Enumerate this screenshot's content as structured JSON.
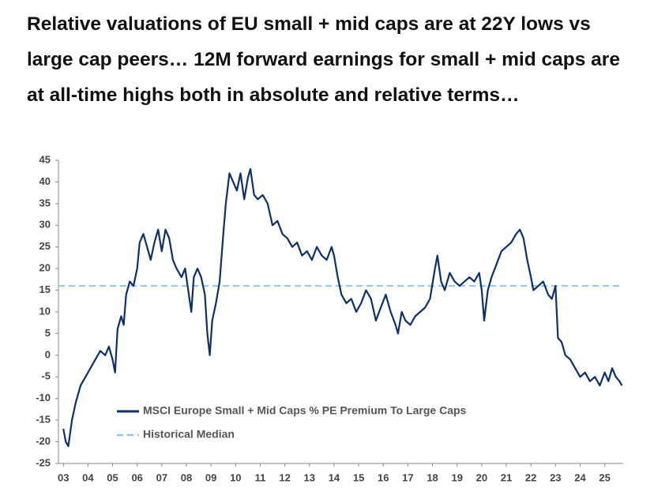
{
  "chart_data": {
    "type": "line",
    "title": "Relative valuations of EU small + mid caps are at 22Y lows vs large cap peers… 12M forward earnings for small + mid caps are at all-time highs both in absolute and relative terms…",
    "x": [
      3.0,
      3.1,
      3.2,
      3.35,
      3.5,
      3.7,
      3.9,
      4.1,
      4.3,
      4.5,
      4.7,
      4.85,
      5.0,
      5.1,
      5.2,
      5.35,
      5.45,
      5.55,
      5.7,
      5.85,
      6.0,
      6.1,
      6.25,
      6.4,
      6.55,
      6.7,
      6.85,
      7.0,
      7.15,
      7.3,
      7.45,
      7.6,
      7.8,
      7.95,
      8.1,
      8.2,
      8.3,
      8.45,
      8.6,
      8.75,
      8.85,
      8.95,
      9.05,
      9.2,
      9.35,
      9.5,
      9.6,
      9.75,
      9.9,
      10.05,
      10.2,
      10.35,
      10.5,
      10.6,
      10.75,
      10.9,
      11.1,
      11.3,
      11.5,
      11.7,
      11.9,
      12.1,
      12.3,
      12.5,
      12.7,
      12.9,
      13.1,
      13.3,
      13.5,
      13.7,
      13.9,
      14.0,
      14.15,
      14.3,
      14.5,
      14.7,
      14.9,
      15.1,
      15.3,
      15.5,
      15.7,
      15.9,
      16.1,
      16.3,
      16.5,
      16.6,
      16.75,
      16.9,
      17.1,
      17.3,
      17.5,
      17.7,
      17.9,
      18.1,
      18.2,
      18.35,
      18.5,
      18.7,
      18.9,
      19.1,
      19.3,
      19.5,
      19.7,
      19.9,
      20.0,
      20.1,
      20.25,
      20.4,
      20.6,
      20.8,
      21.0,
      21.2,
      21.4,
      21.55,
      21.7,
      21.85,
      22.0,
      22.1,
      22.3,
      22.5,
      22.7,
      22.85,
      23.0,
      23.1,
      23.25,
      23.4,
      23.6,
      23.8,
      24.0,
      24.2,
      24.4,
      24.6,
      24.8,
      25.0,
      25.15,
      25.3,
      25.45,
      25.6,
      25.7
    ],
    "series": [
      {
        "name": "MSCI Europe Small + Mid Caps % PE Premium To Large Caps",
        "color": "#0d2f6b",
        "values": [
          -17,
          -20,
          -21,
          -15,
          -11,
          -7,
          -5,
          -3,
          -1,
          1,
          0,
          2,
          -1,
          -4,
          6,
          9,
          7,
          14,
          17,
          16,
          20,
          26,
          28,
          25,
          22,
          26,
          29,
          24,
          29,
          27,
          22,
          20,
          18,
          20,
          14,
          10,
          18,
          20,
          18,
          14,
          5,
          0,
          8,
          12,
          17,
          28,
          35,
          42,
          40,
          38,
          42,
          36,
          41,
          43,
          37,
          36,
          37,
          35,
          30,
          31,
          28,
          27,
          25,
          26,
          23,
          24,
          22,
          25,
          23,
          22,
          25,
          23,
          18,
          14,
          12,
          13,
          10,
          12,
          15,
          13,
          8,
          11,
          14,
          10,
          7,
          5,
          10,
          8,
          7,
          9,
          10,
          11,
          13,
          20,
          23,
          17,
          15,
          19,
          17,
          16,
          17,
          18,
          17,
          19,
          15,
          8,
          15,
          18,
          21,
          24,
          25,
          26,
          28,
          29,
          27,
          22,
          18,
          15,
          16,
          17,
          14,
          13,
          16,
          4,
          3,
          0,
          -1,
          -3,
          -5,
          -4,
          -6,
          -5,
          -7,
          -4,
          -6,
          -3,
          -5,
          -6,
          -7
        ]
      }
    ],
    "reference_lines": [
      {
        "name": "Historical Median",
        "value": 16,
        "color": "#8ec8f0"
      }
    ],
    "xlim": [
      2.8,
      25.75
    ],
    "xticks": [
      {
        "value": 3,
        "label": "03"
      },
      {
        "value": 4,
        "label": "04"
      },
      {
        "value": 5,
        "label": "05"
      },
      {
        "value": 6,
        "label": "06"
      },
      {
        "value": 7,
        "label": "07"
      },
      {
        "value": 8,
        "label": "08"
      },
      {
        "value": 9,
        "label": "09"
      },
      10,
      11,
      12,
      13,
      14,
      15,
      16,
      17,
      18,
      19,
      20,
      21,
      22,
      23,
      24,
      25
    ],
    "ylim": [
      -25,
      45
    ],
    "yticks": [
      -25,
      -20,
      -15,
      -10,
      -5,
      0,
      5,
      10,
      15,
      20,
      25,
      30,
      35,
      40,
      45
    ]
  }
}
